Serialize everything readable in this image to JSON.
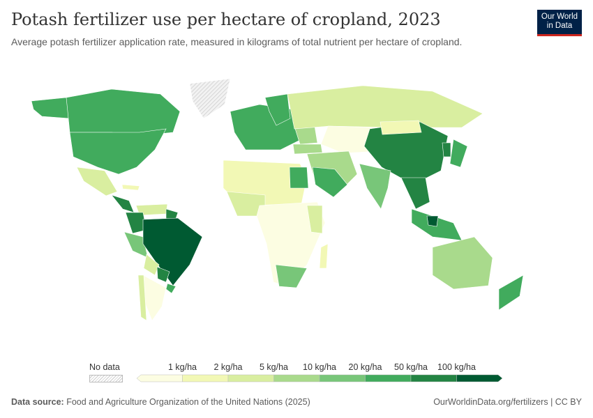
{
  "header": {
    "title": "Potash fertilizer use per hectare of cropland, 2023",
    "subtitle": "Average potash fertilizer application rate, measured in kilograms of total nutrient per hectare of cropland.",
    "logo": "Our World in Data"
  },
  "legend": {
    "no_data_label": "No data",
    "ticks": [
      "1 kg/ha",
      "2 kg/ha",
      "5 kg/ha",
      "10 kg/ha",
      "20 kg/ha",
      "50 kg/ha",
      "100 kg/ha"
    ],
    "colors": [
      "#fcfde2",
      "#f2f8b5",
      "#d9eea0",
      "#a9da8c",
      "#78c679",
      "#41ab5d",
      "#238443",
      "#005a32"
    ],
    "no_data_color": "#e6e6e6"
  },
  "footer": {
    "source_label": "Data source:",
    "source": "Food and Agriculture Organization of the United Nations (2025)",
    "link": "OurWorldinData.org/fertilizers | CC BY"
  }
}
